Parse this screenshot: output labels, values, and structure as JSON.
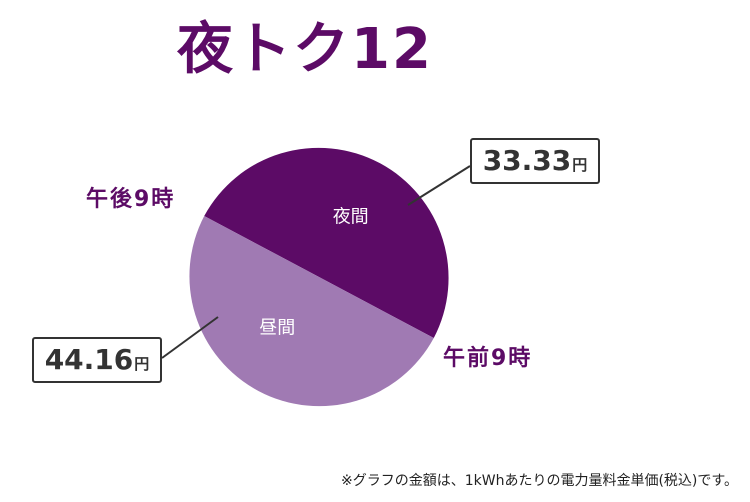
{
  "title": "夜トク12",
  "chart_data": {
    "type": "pie",
    "slices": [
      {
        "label": "夜間",
        "value": 33.33,
        "unit": "円",
        "color": "#5c0b66",
        "text_color": "#ffffff"
      },
      {
        "label": "昼間",
        "value": 44.16,
        "unit": "円",
        "color": "#a07ab3",
        "text_color": "#ffffff"
      }
    ],
    "slice_share": [
      0.5,
      0.5
    ],
    "boundary_labels": {
      "start": "午前9時",
      "end": "午後9時"
    }
  },
  "labels": {
    "night_price": "33.33",
    "day_price": "44.16",
    "unit": "円"
  },
  "note": "※グラフの金額は、1kWhあたりの電力量料金単価(税込)です。"
}
